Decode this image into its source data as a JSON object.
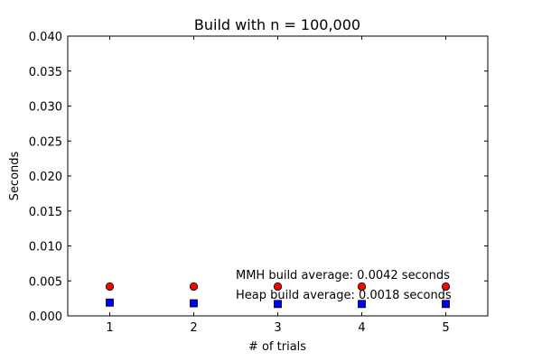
{
  "chart_data": {
    "type": "scatter",
    "title": "Build with n = 100,000",
    "xlabel": "# of trials",
    "ylabel": "Seconds",
    "xlim": [
      0.5,
      5.5
    ],
    "ylim": [
      0,
      0.04
    ],
    "x_ticks": [
      1,
      2,
      3,
      4,
      5
    ],
    "x_tick_labels": [
      "1",
      "2",
      "3",
      "4",
      "5"
    ],
    "y_ticks": [
      0.0,
      0.005,
      0.01,
      0.015,
      0.02,
      0.025,
      0.03,
      0.035,
      0.04
    ],
    "y_tick_labels": [
      "0.000",
      "0.005",
      "0.010",
      "0.015",
      "0.020",
      "0.025",
      "0.030",
      "0.035",
      "0.040"
    ],
    "grid": false,
    "series": [
      {
        "marker": "circle",
        "color": "#ff0000",
        "x": [
          1,
          2,
          3,
          4,
          5
        ],
        "y": [
          0.0042,
          0.0042,
          0.0042,
          0.0042,
          0.0042
        ]
      },
      {
        "marker": "square",
        "color": "#0000ff",
        "x": [
          1,
          2,
          3,
          4,
          5
        ],
        "y": [
          0.0019,
          0.0018,
          0.0017,
          0.0017,
          0.0017
        ]
      }
    ],
    "annotations": [
      "MMH build average: 0.0042 seconds",
      "Heap build average: 0.0018 seconds"
    ]
  }
}
